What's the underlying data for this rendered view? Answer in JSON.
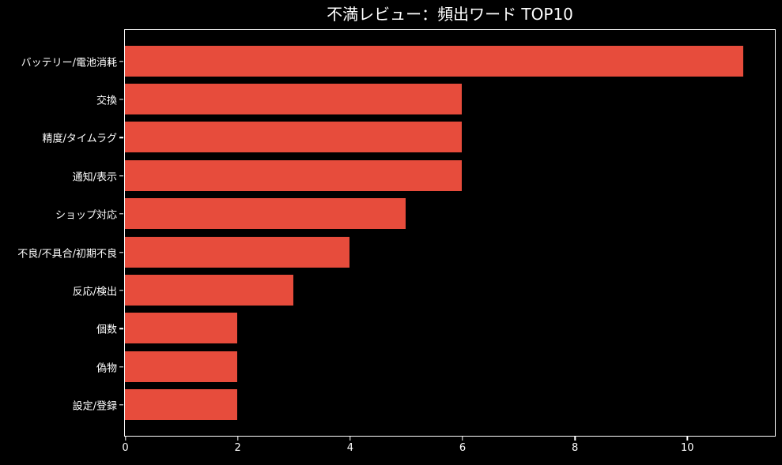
{
  "figure": {
    "background_color": "#000000",
    "text_color": "#ffffff",
    "spine_color": "#ffffff"
  },
  "chart_data": {
    "type": "bar",
    "orientation": "horizontal",
    "title": "不満レビュー：頻出ワード TOP10",
    "xlabel": "",
    "ylabel": "",
    "categories": [
      "バッテリー/電池消耗",
      "交換",
      "精度/タイムラグ",
      "通知/表示",
      "ショップ対応",
      "不良/不具合/初期不良",
      "反応/検出",
      "個数",
      "偽物",
      "設定/登録"
    ],
    "values": [
      11,
      6,
      6,
      6,
      5,
      4,
      3,
      2,
      2,
      2
    ],
    "xlim": [
      0,
      11.55
    ],
    "x_ticks": [
      0,
      2,
      4,
      6,
      8,
      10
    ],
    "bar_color": "#e74c3c",
    "background_color": "#000000",
    "grid": false,
    "legend": null
  }
}
